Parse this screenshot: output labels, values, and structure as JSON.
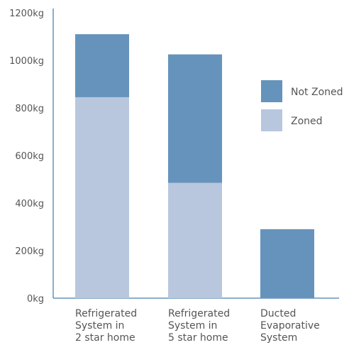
{
  "chart_data": {
    "type": "bar",
    "stacked": true,
    "categories": [
      [
        "Refrigerated",
        "System in",
        "2 star home"
      ],
      [
        "Refrigerated",
        "System in",
        "5 star home"
      ],
      [
        "Ducted",
        "Evaporative",
        "System"
      ]
    ],
    "series": [
      {
        "name": "Zoned",
        "values": [
          845,
          485,
          0
        ],
        "color": "#b8c7de"
      },
      {
        "name": "Not Zoned",
        "values": [
          265,
          540,
          290
        ],
        "color": "#6593bb"
      }
    ],
    "ylim": [
      0,
      1200
    ],
    "yticks": [
      0,
      200,
      400,
      600,
      800,
      1000,
      1200
    ],
    "ytick_suffix": "kg",
    "legend_position": "right",
    "legend_order": [
      "Not Zoned",
      "Zoned"
    ],
    "grid": false,
    "axis_color": "#6593bb"
  }
}
